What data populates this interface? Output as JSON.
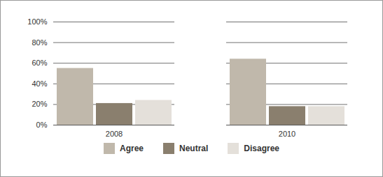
{
  "chart_data": {
    "type": "bar",
    "categories": [
      "2008",
      "2010"
    ],
    "series": [
      {
        "name": "Agree",
        "color": "#c0b8ab",
        "values": [
          55,
          64
        ]
      },
      {
        "name": "Neutral",
        "color": "#8a7f6e",
        "values": [
          21,
          18
        ]
      },
      {
        "name": "Disagree",
        "color": "#e4e0da",
        "values": [
          24,
          18
        ]
      }
    ],
    "ylim": [
      0,
      100
    ],
    "yticks": [
      {
        "value": 0,
        "label": "0%"
      },
      {
        "value": 20,
        "label": "20%"
      },
      {
        "value": 40,
        "label": "40%"
      },
      {
        "value": 60,
        "label": "60%"
      },
      {
        "value": 80,
        "label": "80%"
      },
      {
        "value": 100,
        "label": "100%"
      }
    ],
    "grid": true,
    "legend": "bottom"
  }
}
